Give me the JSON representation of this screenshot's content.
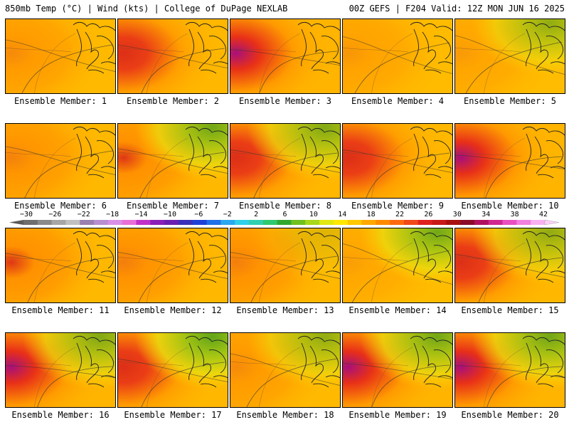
{
  "header": {
    "left": "850mb Temp (°C) | Wind (kts) | College of DuPage NEXLAB",
    "right": "00Z GEFS | F204 Valid: 12Z MON JUN 16 2025"
  },
  "panels": [
    {
      "label": "Ensemble Member: 1",
      "heat": 0.3,
      "green": 0.0
    },
    {
      "label": "Ensemble Member: 2",
      "heat": 0.55,
      "green": 0.0
    },
    {
      "label": "Ensemble Member: 3",
      "heat": 0.75,
      "green": 0.0
    },
    {
      "label": "Ensemble Member: 4",
      "heat": 0.15,
      "green": 0.0
    },
    {
      "label": "Ensemble Member: 5",
      "heat": 0.1,
      "green": 0.35
    },
    {
      "label": "Ensemble Member: 6",
      "heat": 0.4,
      "green": 0.0
    },
    {
      "label": "Ensemble Member: 7",
      "heat": 0.5,
      "green": 0.45
    },
    {
      "label": "Ensemble Member: 8",
      "heat": 0.55,
      "green": 0.4
    },
    {
      "label": "Ensemble Member: 9",
      "heat": 0.55,
      "green": 0.0
    },
    {
      "label": "Ensemble Member: 10",
      "heat": 0.8,
      "green": 0.0
    },
    {
      "label": "Ensemble Member: 11",
      "heat": 0.5,
      "green": 0.0
    },
    {
      "label": "Ensemble Member: 12",
      "heat": 0.45,
      "green": 0.0
    },
    {
      "label": "Ensemble Member: 13",
      "heat": 0.45,
      "green": 0.1
    },
    {
      "label": "Ensemble Member: 14",
      "heat": 0.05,
      "green": 0.45
    },
    {
      "label": "Ensemble Member: 15",
      "heat": 0.55,
      "green": 0.35
    },
    {
      "label": "Ensemble Member: 16",
      "heat": 0.85,
      "green": 0.4
    },
    {
      "label": "Ensemble Member: 17",
      "heat": 0.55,
      "green": 0.5
    },
    {
      "label": "Ensemble Member: 18",
      "heat": 0.3,
      "green": 0.35
    },
    {
      "label": "Ensemble Member: 19",
      "heat": 0.75,
      "green": 0.45
    },
    {
      "label": "Ensemble Member: 20",
      "heat": 0.85,
      "green": 0.45
    }
  ],
  "colorbar": {
    "ticks": [
      "−30",
      "−26",
      "−22",
      "−18",
      "−14",
      "−10",
      "−6",
      "−2",
      "2",
      "6",
      "10",
      "14",
      "18",
      "22",
      "26",
      "30",
      "34",
      "38",
      "42"
    ],
    "colors": [
      "#6e6e6e",
      "#8a8a8a",
      "#a6a6a6",
      "#c0c0c0",
      "#9a7fb0",
      "#b78fd0",
      "#d98fe8",
      "#e86fd8",
      "#c030c8",
      "#8a1fb8",
      "#6a1fb0",
      "#3a2fb8",
      "#1f3fd8",
      "#1f6fe8",
      "#2aa8f0",
      "#2fd0e8",
      "#2fd0b0",
      "#2fc870",
      "#30a830",
      "#70c020",
      "#a8d818",
      "#e0e810",
      "#ffe800",
      "#ffc800",
      "#ffa800",
      "#ff8a00",
      "#ff6a10",
      "#f04818",
      "#e02020",
      "#c81818",
      "#a81010",
      "#8a0a28",
      "#b01060",
      "#d02890",
      "#e850c0",
      "#f080e0",
      "#f8b0f0"
    ]
  }
}
